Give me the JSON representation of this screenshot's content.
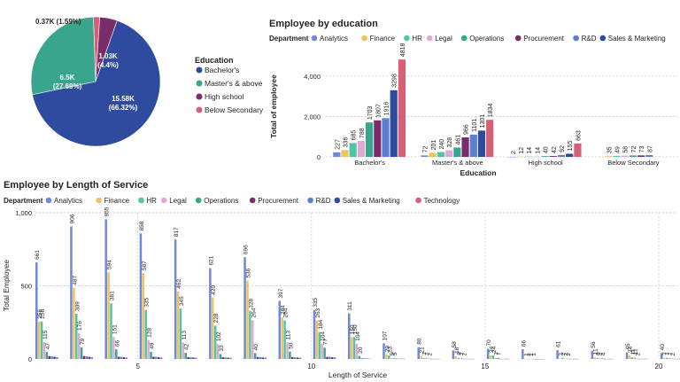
{
  "colors": {
    "Analytics": "#6f88d8",
    "Finance": "#f2c25c",
    "HR": "#4fc4a8",
    "Legal": "#e2a8d4",
    "Operations": "#3aa58d",
    "Procurement": "#7a2d6a",
    "R&D": "#5c7fd1",
    "Sales & Marketing": "#2f4ba0",
    "Technology": "#d85f78",
    "edu": [
      "#2f4ba0",
      "#3aa58d",
      "#7a2d6a",
      "#d85f78"
    ]
  },
  "pie": {
    "legend_title": "Education",
    "items": [
      "Bachelor's",
      "Master's & above",
      "High school",
      "Below Secondary"
    ],
    "value_labels": [
      "15.58K\n(66.32%)",
      "6.5K\n(27.69%)",
      "1.03K\n(4.4%)",
      "0.37K (1.59%)"
    ]
  },
  "chart_data": [
    {
      "type": "pie",
      "categories": [
        "Bachelor's",
        "Master's & above",
        "High school",
        "Below Secondary"
      ],
      "values": [
        15.58,
        6.5,
        1.03,
        0.37
      ],
      "percents": [
        66.32,
        27.69,
        4.4,
        1.59
      ],
      "unit": "K"
    },
    {
      "type": "bar",
      "title": "Employee by education",
      "xlabel": "Education",
      "ylabel": "Total of employee",
      "legend_title": "Department",
      "legend_position": "top",
      "ylim": [
        0,
        5000
      ],
      "yticks": [
        0,
        2000,
        4000
      ],
      "ytick_labels": [
        "0",
        "2,000",
        "4,000"
      ],
      "categories": [
        "Bachelor's",
        "Master's & above",
        "High school",
        "Below Secondary"
      ],
      "series": [
        {
          "name": "Analytics",
          "values": [
            227,
            72,
            2,
            null
          ]
        },
        {
          "name": "Finance",
          "values": [
            336,
            201,
            12,
            35
          ]
        },
        {
          "name": "HR",
          "values": [
            685,
            240,
            14,
            49
          ]
        },
        {
          "name": "Legal",
          "values": [
            788,
            328,
            14,
            58
          ]
        },
        {
          "name": "Operations",
          "values": [
            1703,
            461,
            40,
            72
          ]
        },
        {
          "name": "Procurement",
          "values": [
            1807,
            966,
            42,
            73
          ]
        },
        {
          "name": "R&D",
          "values": [
            1916,
            1101,
            92,
            87
          ]
        },
        {
          "name": "Sales & Marketing",
          "values": [
            3298,
            1301,
            155,
            null
          ]
        },
        {
          "name": "Technology",
          "values": [
            4818,
            1834,
            663,
            null
          ]
        }
      ]
    },
    {
      "type": "bar",
      "title": "Employee by Length of Service",
      "xlabel": "Length of Service",
      "ylabel": "Total Employee",
      "legend_title": "Department",
      "legend_position": "top",
      "ylim": [
        0,
        1000
      ],
      "yticks": [
        0,
        500,
        1000
      ],
      "ytick_labels": [
        "0",
        "500",
        "1,000"
      ],
      "xticks": [
        5,
        10,
        15,
        20
      ],
      "categories": [
        2,
        3,
        4,
        5,
        6,
        7,
        8,
        9,
        10,
        11,
        12,
        13,
        14,
        15,
        16,
        17,
        18,
        19,
        20
      ],
      "series": [
        {
          "name": "Analytics",
          "values": [
            661,
            906,
            955,
            858,
            817,
            621,
            696,
            397,
            335,
            311,
            107,
            80,
            58,
            70,
            66,
            61,
            56,
            45,
            40
          ]
        },
        {
          "name": "Finance",
          "values": [
            256,
            487,
            594,
            587,
            462,
            420,
            536,
            284,
            263,
            150,
            29,
            21,
            18,
            24,
            1,
            2,
            11,
            24,
            7
          ]
        },
        {
          "name": "HR",
          "values": [
            256,
            309,
            381,
            335,
            345,
            228,
            328,
            264,
            184,
            150,
            23,
            7,
            8,
            24,
            1,
            7,
            6,
            11,
            7
          ]
        },
        {
          "name": "Legal",
          "values": [
            115,
            176,
            151,
            128,
            113,
            102,
            264,
            113,
            104,
            104,
            5,
            7,
            7,
            7,
            1,
            2,
            4,
            11,
            7
          ]
        },
        {
          "name": "Operations",
          "values": [
            47,
            79,
            66,
            49,
            42,
            33,
            40,
            50,
            77,
            20,
            5,
            2,
            2,
            7,
            1,
            2,
            4,
            2,
            2
          ]
        },
        {
          "name": "Procurement",
          "values": [
            20,
            20,
            15,
            15,
            12,
            12,
            13,
            13,
            14,
            4,
            2,
            1,
            1,
            1,
            0,
            1,
            1,
            1,
            1
          ]
        },
        {
          "name": "R&D",
          "values": [
            18,
            18,
            14,
            14,
            12,
            10,
            13,
            11,
            14,
            4,
            2,
            1,
            1,
            1,
            0,
            1,
            1,
            1,
            1
          ]
        },
        {
          "name": "Sales & Marketing",
          "values": [
            15,
            15,
            12,
            12,
            10,
            9,
            10,
            10,
            12,
            3,
            2,
            1,
            1,
            1,
            0,
            1,
            1,
            1,
            1
          ]
        },
        {
          "name": "Technology",
          "values": [
            12,
            12,
            10,
            10,
            8,
            8,
            9,
            9,
            10,
            3,
            1,
            1,
            1,
            1,
            0,
            1,
            1,
            1,
            1
          ]
        }
      ]
    }
  ]
}
